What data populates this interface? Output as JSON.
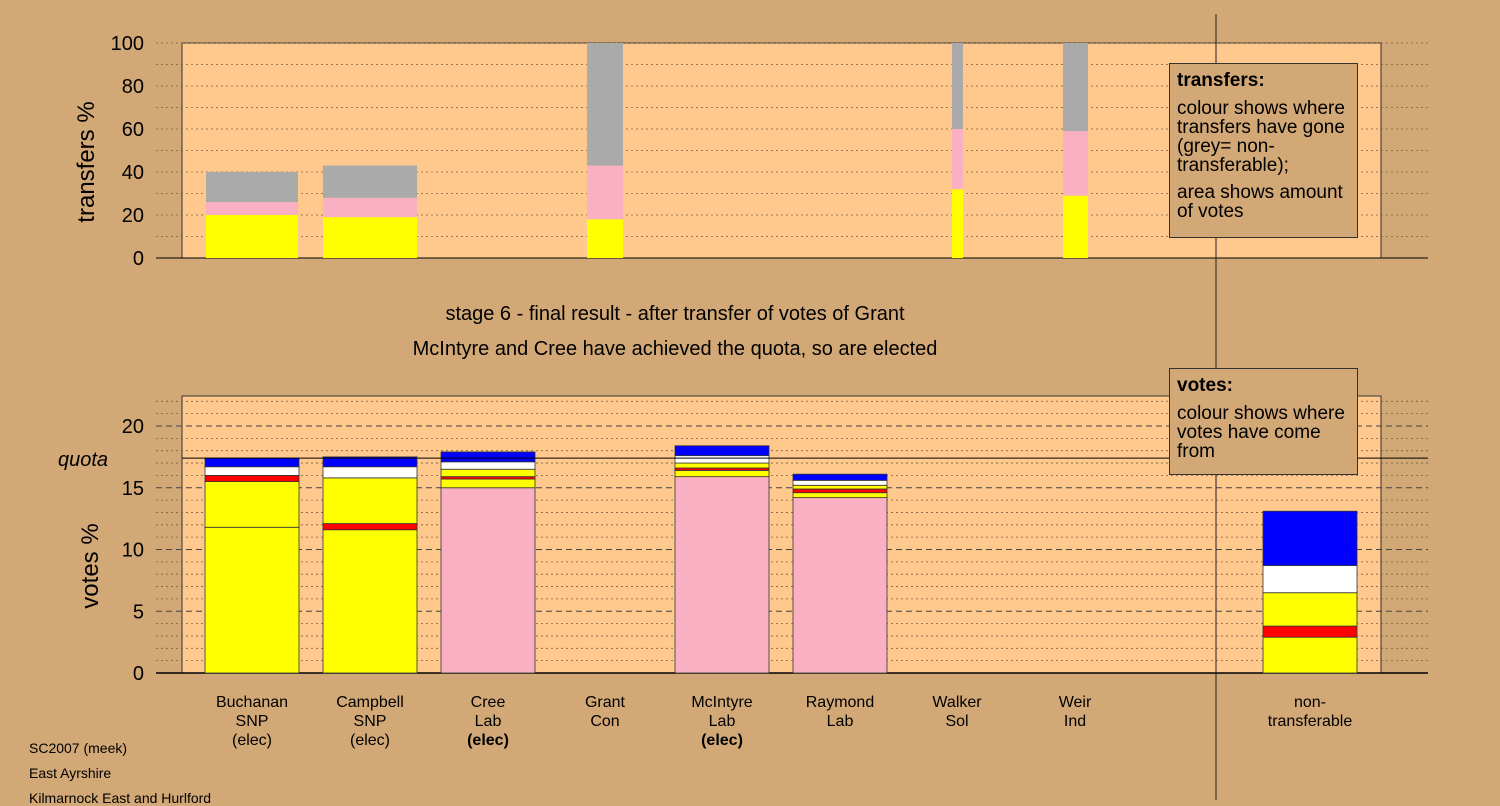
{
  "chart_data": [
    {
      "type": "bar",
      "title": "",
      "ylabel": "transfers %",
      "ylim": [
        0,
        100
      ],
      "yticks": [
        "0",
        "20",
        "40",
        "60",
        "80",
        "100"
      ],
      "colors": {
        "yellow": "#ffff00",
        "pink": "#f9b0c3",
        "grey": "#aaaaaa"
      },
      "bars": [
        {
          "segments": [
            {
              "color": "yellow",
              "value": 20
            },
            {
              "color": "pink",
              "value": 6
            },
            {
              "color": "grey",
              "value": 14
            }
          ]
        },
        {
          "segments": [
            {
              "color": "yellow",
              "value": 19
            },
            {
              "color": "pink",
              "value": 9
            },
            {
              "color": "grey",
              "value": 15
            }
          ]
        },
        {
          "segments": [
            {
              "color": "yellow",
              "value": 18
            },
            {
              "color": "pink",
              "value": 25
            },
            {
              "color": "grey",
              "value": 57
            }
          ]
        },
        {
          "segments": [
            {
              "color": "yellow",
              "value": 32
            },
            {
              "color": "pink",
              "value": 28
            },
            {
              "color": "grey",
              "value": 40
            }
          ]
        },
        {
          "segments": [
            {
              "color": "yellow",
              "value": 29
            },
            {
              "color": "pink",
              "value": 30
            },
            {
              "color": "grey",
              "value": 41
            }
          ]
        }
      ]
    },
    {
      "type": "bar",
      "ylabel": "votes %",
      "ylim": [
        0,
        22.5
      ],
      "yticks": [
        "0",
        "5",
        "10",
        "15",
        "20"
      ],
      "quota": 17.4,
      "quota_label": "quota",
      "colors": {
        "yellow": "#ffff00",
        "pink": "#f9b0c3",
        "red": "#ff0000",
        "white": "#ffffff",
        "blue": "#0000ff"
      },
      "categories": [
        {
          "name": "Buchanan",
          "party": "SNP",
          "status": "(elec)",
          "bold": false
        },
        {
          "name": "Campbell",
          "party": "SNP",
          "status": "(elec)",
          "bold": false
        },
        {
          "name": "Cree",
          "party": "Lab",
          "status": "(elec)",
          "bold": true
        },
        {
          "name": "Grant",
          "party": "Con",
          "status": "",
          "bold": false
        },
        {
          "name": "McIntyre",
          "party": "Lab",
          "status": "(elec)",
          "bold": true
        },
        {
          "name": "Raymond",
          "party": "Lab",
          "status": "",
          "bold": false
        },
        {
          "name": "Walker",
          "party": "Sol",
          "status": "",
          "bold": false
        },
        {
          "name": "Weir",
          "party": "Ind",
          "status": "",
          "bold": false
        },
        {
          "name": "non-",
          "party": "transferable",
          "status": "",
          "bold": false
        }
      ],
      "stacks": [
        [
          {
            "color": "yellow",
            "value": 11.8
          },
          {
            "color": "yellow",
            "value": 3.7
          },
          {
            "color": "red",
            "value": 0.5
          },
          {
            "color": "white",
            "value": 0.7
          },
          {
            "color": "blue",
            "value": 0.7
          }
        ],
        [
          {
            "color": "yellow",
            "value": 11.6
          },
          {
            "color": "red",
            "value": 0.5
          },
          {
            "color": "yellow",
            "value": 3.7
          },
          {
            "color": "white",
            "value": 0.9
          },
          {
            "color": "blue",
            "value": 0.8
          }
        ],
        [
          {
            "color": "pink",
            "value": 15.0
          },
          {
            "color": "yellow",
            "value": 0.7
          },
          {
            "color": "red",
            "value": 0.2
          },
          {
            "color": "yellow",
            "value": 0.6
          },
          {
            "color": "white",
            "value": 0.6
          },
          {
            "color": "blue",
            "value": 0.8
          }
        ],
        [],
        [
          {
            "color": "pink",
            "value": 15.9
          },
          {
            "color": "yellow",
            "value": 0.5
          },
          {
            "color": "red",
            "value": 0.2
          },
          {
            "color": "yellow",
            "value": 0.4
          },
          {
            "color": "white",
            "value": 0.6
          },
          {
            "color": "blue",
            "value": 0.8
          }
        ],
        [
          {
            "color": "pink",
            "value": 14.2
          },
          {
            "color": "yellow",
            "value": 0.4
          },
          {
            "color": "red",
            "value": 0.3
          },
          {
            "color": "yellow",
            "value": 0.3
          },
          {
            "color": "white",
            "value": 0.4
          },
          {
            "color": "blue",
            "value": 0.5
          }
        ],
        [],
        [],
        [
          {
            "color": "yellow",
            "value": 2.9
          },
          {
            "color": "red",
            "value": 0.9
          },
          {
            "color": "yellow",
            "value": 2.7
          },
          {
            "color": "white",
            "value": 2.2
          },
          {
            "color": "blue",
            "value": 4.4
          }
        ]
      ]
    }
  ],
  "headline": {
    "line1": "stage 6 - final result - after transfer of votes of Grant",
    "line2": "McIntyre and Cree have achieved the quota, so are elected"
  },
  "legend_transfers": {
    "title": "transfers:",
    "line1": "colour shows where transfers have gone (grey= non-transferable);",
    "line2": "area shows amount of votes"
  },
  "legend_votes": {
    "title": "votes:",
    "line1": "colour shows where votes have come from"
  },
  "footer": {
    "line1": "SC2007 (meek)",
    "line2": "East Ayrshire",
    "line3": "Kilmarnock East and Hurlford"
  }
}
